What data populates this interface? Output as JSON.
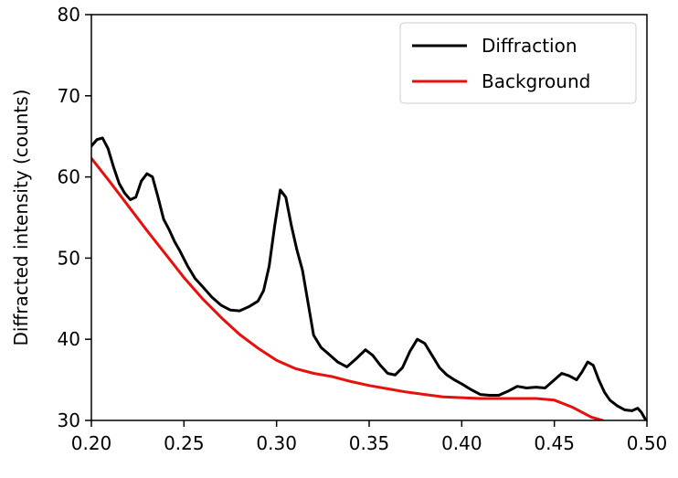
{
  "colors": {
    "diffraction": "#000000",
    "background": "#e8100c",
    "axes": "#000000",
    "legend_border": "#cccccc"
  },
  "chart_data": {
    "type": "line",
    "title": "",
    "xlabel": "",
    "ylabel": "Diffracted intensity (counts)",
    "xlim": [
      0.2,
      0.5
    ],
    "ylim": [
      30,
      80
    ],
    "xticks": [
      "0.20",
      "0.25",
      "0.30",
      "0.35",
      "0.40",
      "0.45",
      "0.50"
    ],
    "yticks": [
      "30",
      "40",
      "50",
      "60",
      "70",
      "80"
    ],
    "grid": false,
    "legend_position": "top-right",
    "series": [
      {
        "name": "Diffraction",
        "color": "#000000",
        "x": [
          0.2,
          0.203,
          0.206,
          0.209,
          0.212,
          0.215,
          0.218,
          0.221,
          0.224,
          0.227,
          0.23,
          0.233,
          0.236,
          0.239,
          0.242,
          0.245,
          0.248,
          0.252,
          0.256,
          0.26,
          0.265,
          0.27,
          0.275,
          0.28,
          0.285,
          0.29,
          0.293,
          0.296,
          0.299,
          0.302,
          0.305,
          0.308,
          0.311,
          0.314,
          0.317,
          0.32,
          0.324,
          0.328,
          0.333,
          0.338,
          0.343,
          0.348,
          0.352,
          0.356,
          0.36,
          0.364,
          0.368,
          0.372,
          0.376,
          0.38,
          0.384,
          0.388,
          0.392,
          0.396,
          0.4,
          0.405,
          0.41,
          0.415,
          0.42,
          0.425,
          0.43,
          0.435,
          0.44,
          0.445,
          0.45,
          0.454,
          0.458,
          0.462,
          0.465,
          0.468,
          0.471,
          0.474,
          0.477,
          0.48,
          0.484,
          0.488,
          0.492,
          0.495,
          0.497,
          0.499
        ],
        "y": [
          63.8,
          64.6,
          64.8,
          63.5,
          61.2,
          59.2,
          58.0,
          57.2,
          57.5,
          59.5,
          60.4,
          60.0,
          57.5,
          54.8,
          53.5,
          52.0,
          50.8,
          49.0,
          47.5,
          46.5,
          45.2,
          44.2,
          43.6,
          43.5,
          44.0,
          44.7,
          46.0,
          49.0,
          54.0,
          58.4,
          57.5,
          54.0,
          51.0,
          48.5,
          44.5,
          40.5,
          39.0,
          38.2,
          37.2,
          36.6,
          37.6,
          38.7,
          38.0,
          36.8,
          35.8,
          35.6,
          36.5,
          38.5,
          40.0,
          39.5,
          38.0,
          36.5,
          35.6,
          35.0,
          34.5,
          33.8,
          33.2,
          33.1,
          33.1,
          33.6,
          34.2,
          34.0,
          34.1,
          34.0,
          35.0,
          35.8,
          35.5,
          35.0,
          36.0,
          37.2,
          36.8,
          35.0,
          33.5,
          32.5,
          31.8,
          31.3,
          31.2,
          31.5,
          31.0,
          30.2
        ]
      },
      {
        "name": "Background",
        "color": "#e8100c",
        "x": [
          0.2,
          0.21,
          0.22,
          0.23,
          0.24,
          0.25,
          0.26,
          0.27,
          0.28,
          0.29,
          0.3,
          0.31,
          0.32,
          0.33,
          0.34,
          0.35,
          0.36,
          0.37,
          0.38,
          0.39,
          0.4,
          0.41,
          0.42,
          0.43,
          0.44,
          0.45,
          0.46,
          0.47,
          0.476
        ],
        "y": [
          62.3,
          59.4,
          56.4,
          53.4,
          50.5,
          47.6,
          45.0,
          42.7,
          40.6,
          38.9,
          37.4,
          36.4,
          35.8,
          35.4,
          34.8,
          34.3,
          33.9,
          33.5,
          33.2,
          32.9,
          32.8,
          32.7,
          32.7,
          32.7,
          32.7,
          32.5,
          31.6,
          30.4,
          30.0
        ]
      }
    ]
  }
}
